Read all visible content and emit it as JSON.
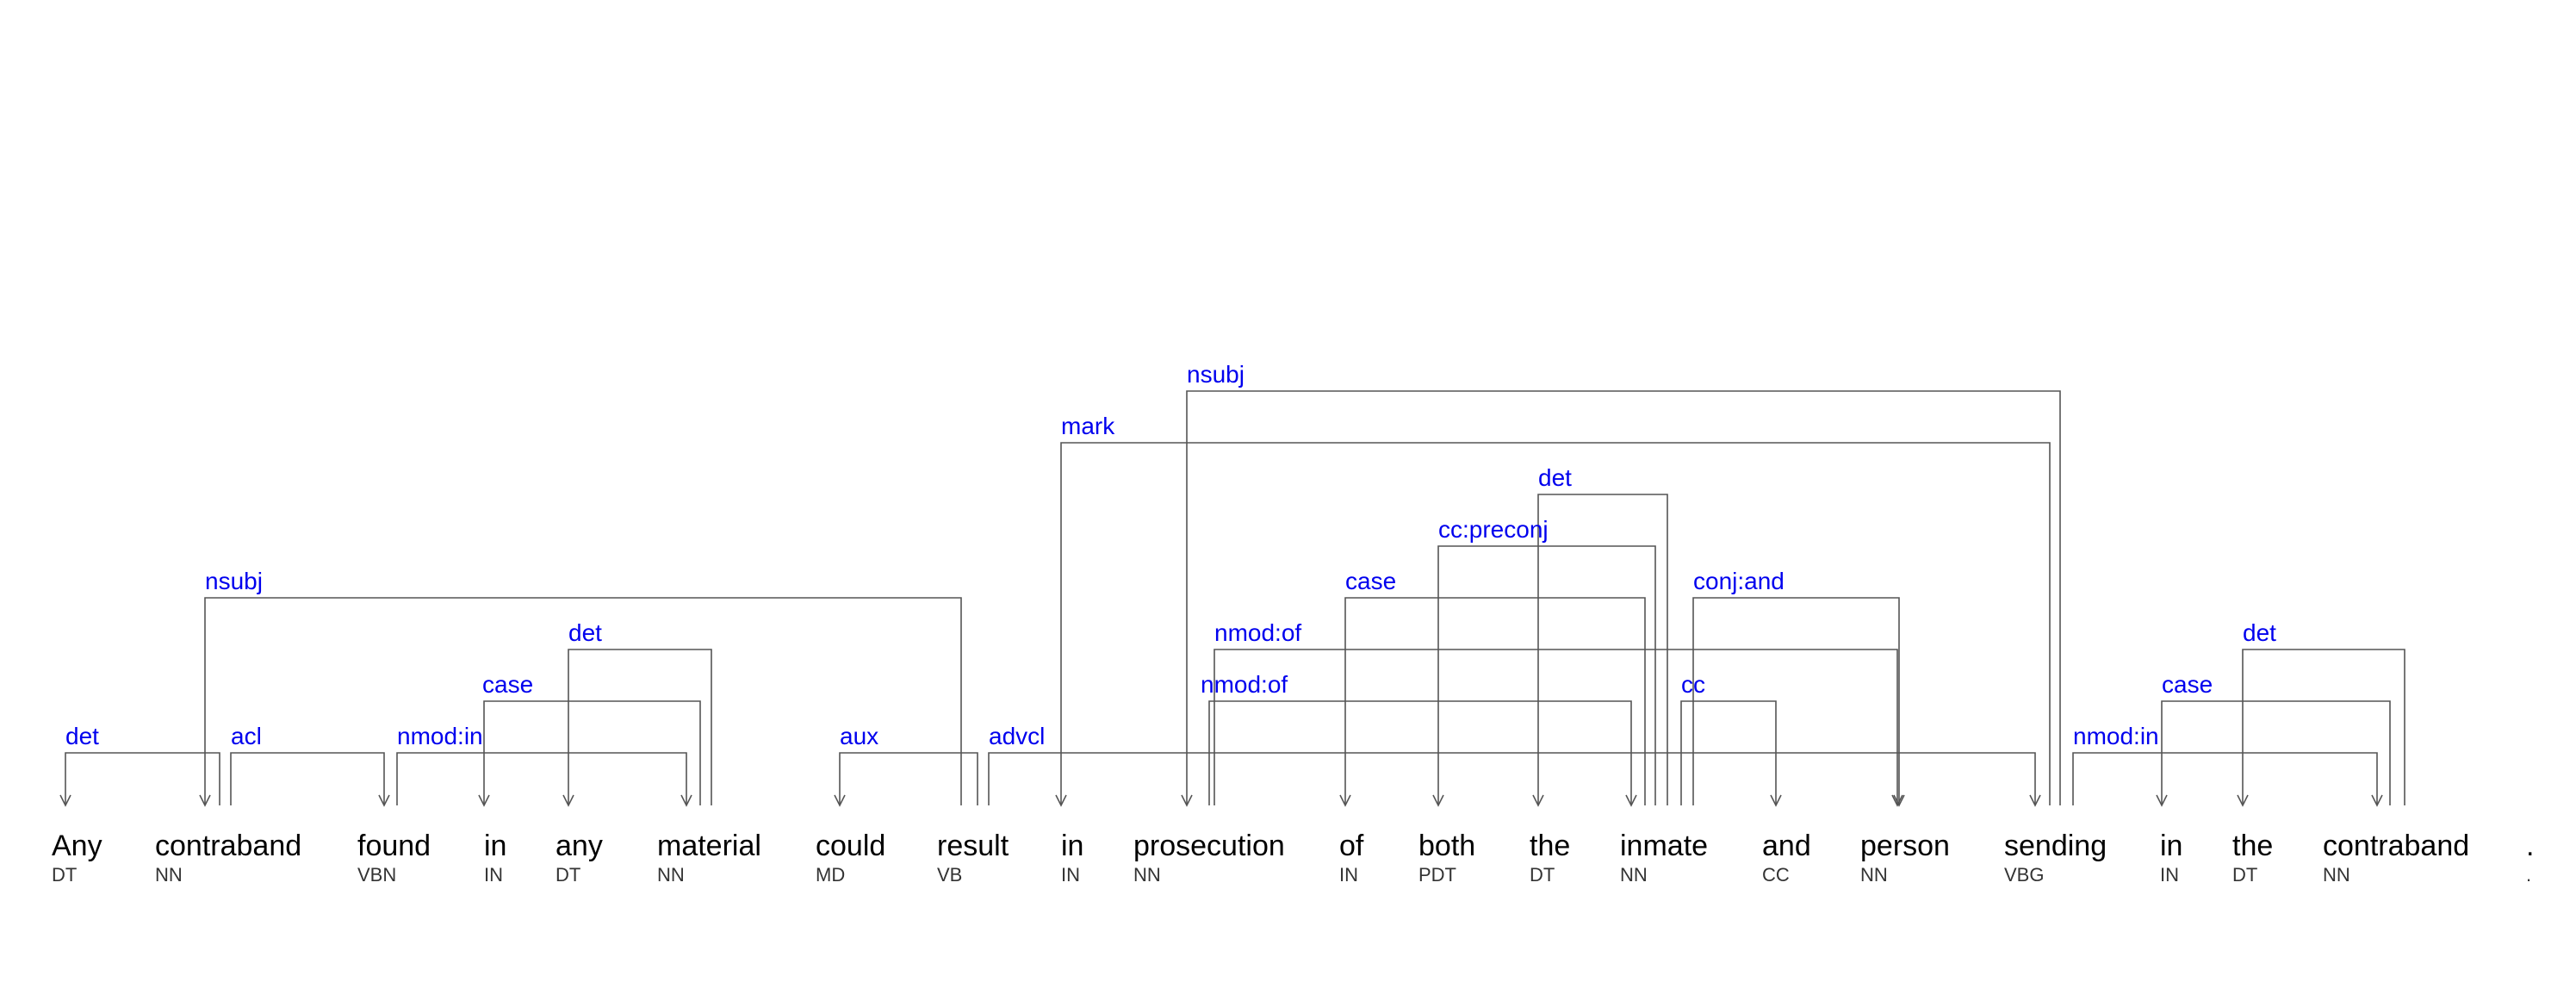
{
  "tokens": [
    {
      "word": "Any",
      "tag": "DT"
    },
    {
      "word": "contraband",
      "tag": "NN"
    },
    {
      "word": "found",
      "tag": "VBN"
    },
    {
      "word": "in",
      "tag": "IN"
    },
    {
      "word": "any",
      "tag": "DT"
    },
    {
      "word": "material",
      "tag": "NN"
    },
    {
      "word": "could",
      "tag": "MD"
    },
    {
      "word": "result",
      "tag": "VB"
    },
    {
      "word": "in",
      "tag": "IN"
    },
    {
      "word": "prosecution",
      "tag": "NN"
    },
    {
      "word": "of",
      "tag": "IN"
    },
    {
      "word": "both",
      "tag": "PDT"
    },
    {
      "word": "the",
      "tag": "DT"
    },
    {
      "word": "inmate",
      "tag": "NN"
    },
    {
      "word": "and",
      "tag": "CC"
    },
    {
      "word": "person",
      "tag": "NN"
    },
    {
      "word": "sending",
      "tag": "VBG"
    },
    {
      "word": "in",
      "tag": "IN"
    },
    {
      "word": "the",
      "tag": "DT"
    },
    {
      "word": "contraband",
      "tag": "NN"
    },
    {
      "word": ".",
      "tag": "."
    }
  ],
  "arcs": [
    {
      "label": "det",
      "head": 1,
      "dep": 0
    },
    {
      "label": "nsubj",
      "head": 7,
      "dep": 1
    },
    {
      "label": "acl",
      "head": 1,
      "dep": 2
    },
    {
      "label": "nmod:in",
      "head": 2,
      "dep": 5
    },
    {
      "label": "case",
      "head": 5,
      "dep": 3
    },
    {
      "label": "det",
      "head": 5,
      "dep": 4
    },
    {
      "label": "aux",
      "head": 7,
      "dep": 6
    },
    {
      "label": "advcl",
      "head": 7,
      "dep": 16
    },
    {
      "label": "mark",
      "head": 16,
      "dep": 8
    },
    {
      "label": "nsubj",
      "head": 16,
      "dep": 9
    },
    {
      "label": "nmod:of",
      "head": 9,
      "dep": 13
    },
    {
      "label": "nmod:of",
      "head": 9,
      "dep": 15
    },
    {
      "label": "case",
      "head": 13,
      "dep": 10
    },
    {
      "label": "cc:preconj",
      "head": 13,
      "dep": 11
    },
    {
      "label": "det",
      "head": 13,
      "dep": 12
    },
    {
      "label": "cc",
      "head": 13,
      "dep": 14
    },
    {
      "label": "conj:and",
      "head": 13,
      "dep": 15
    },
    {
      "label": "nmod:in",
      "head": 16,
      "dep": 19
    },
    {
      "label": "case",
      "head": 19,
      "dep": 17
    },
    {
      "label": "det",
      "head": 19,
      "dep": 18
    }
  ]
}
